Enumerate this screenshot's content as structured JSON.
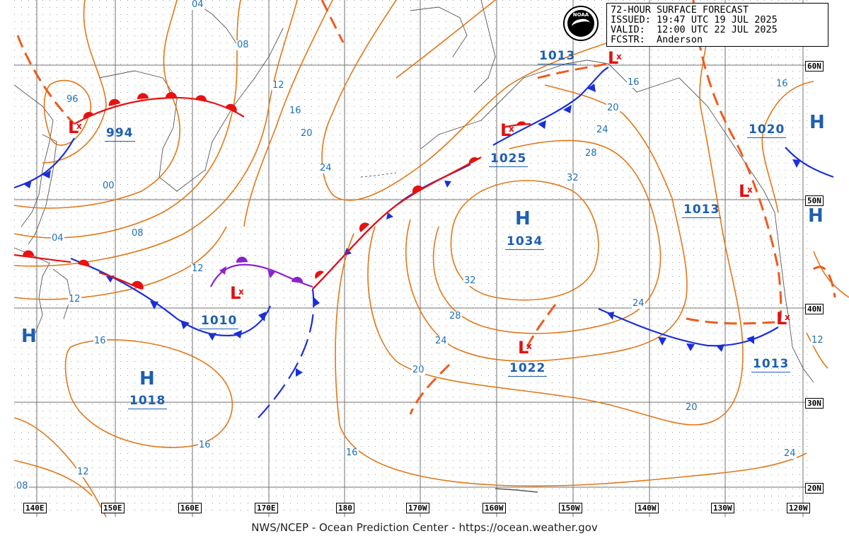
{
  "header": {
    "title": "72-HOUR SURFACE FORECAST",
    "issued_label": "ISSUED:",
    "issued": "19:47 UTC 19 JUL 2025",
    "valid_label": "VALID:",
    "valid": "12:00 UTC 22 JUL 2025",
    "forecaster_label": "FCSTR:",
    "forecaster": "Anderson"
  },
  "logo_text": "NOAA",
  "footer": "NWS/NCEP - Ocean Prediction Center - https://ocean.weather.gov",
  "colors": {
    "isobar": "#e07818",
    "cold_front": "#1a2fd8",
    "warm_front": "#e81010",
    "occluded_front": "#8a22d0",
    "trough": "#f05a1e",
    "pressure_label": "#1d5fb0",
    "low_symbol": "#e01010"
  },
  "latitudes": [
    "60N",
    "50N",
    "40N",
    "30N",
    "20N"
  ],
  "longitudes": [
    "140E",
    "150E",
    "160E",
    "170E",
    "180",
    "170W",
    "160W",
    "150W",
    "140W",
    "130W",
    "120W"
  ],
  "highs": [
    {
      "symbol": "H",
      "pressure": "1034"
    },
    {
      "symbol": "H",
      "pressure": "1018"
    },
    {
      "symbol": "H",
      "pressure": "1020"
    },
    {
      "symbol": "H",
      "pressure": ""
    },
    {
      "symbol": "H",
      "pressure": ""
    }
  ],
  "lows": [
    {
      "symbol": "L",
      "pressure": "994"
    },
    {
      "symbol": "L",
      "pressure": "1010"
    },
    {
      "symbol": "L",
      "pressure": "1025"
    },
    {
      "symbol": "L",
      "pressure": "1013"
    },
    {
      "symbol": "L",
      "pressure": "1022"
    },
    {
      "symbol": "L",
      "pressure": "1013"
    },
    {
      "symbol": "L",
      "pressure": "1013"
    }
  ],
  "isobar_labels": [
    "04",
    "08",
    "12",
    "16",
    "20",
    "24",
    "96",
    "00",
    "04",
    "08",
    "12",
    "12",
    "16",
    "16",
    "12",
    "08",
    "24",
    "28",
    "32",
    "32",
    "28",
    "24",
    "20",
    "16",
    "16",
    "20",
    "24",
    "16",
    "20",
    "24",
    "12"
  ]
}
